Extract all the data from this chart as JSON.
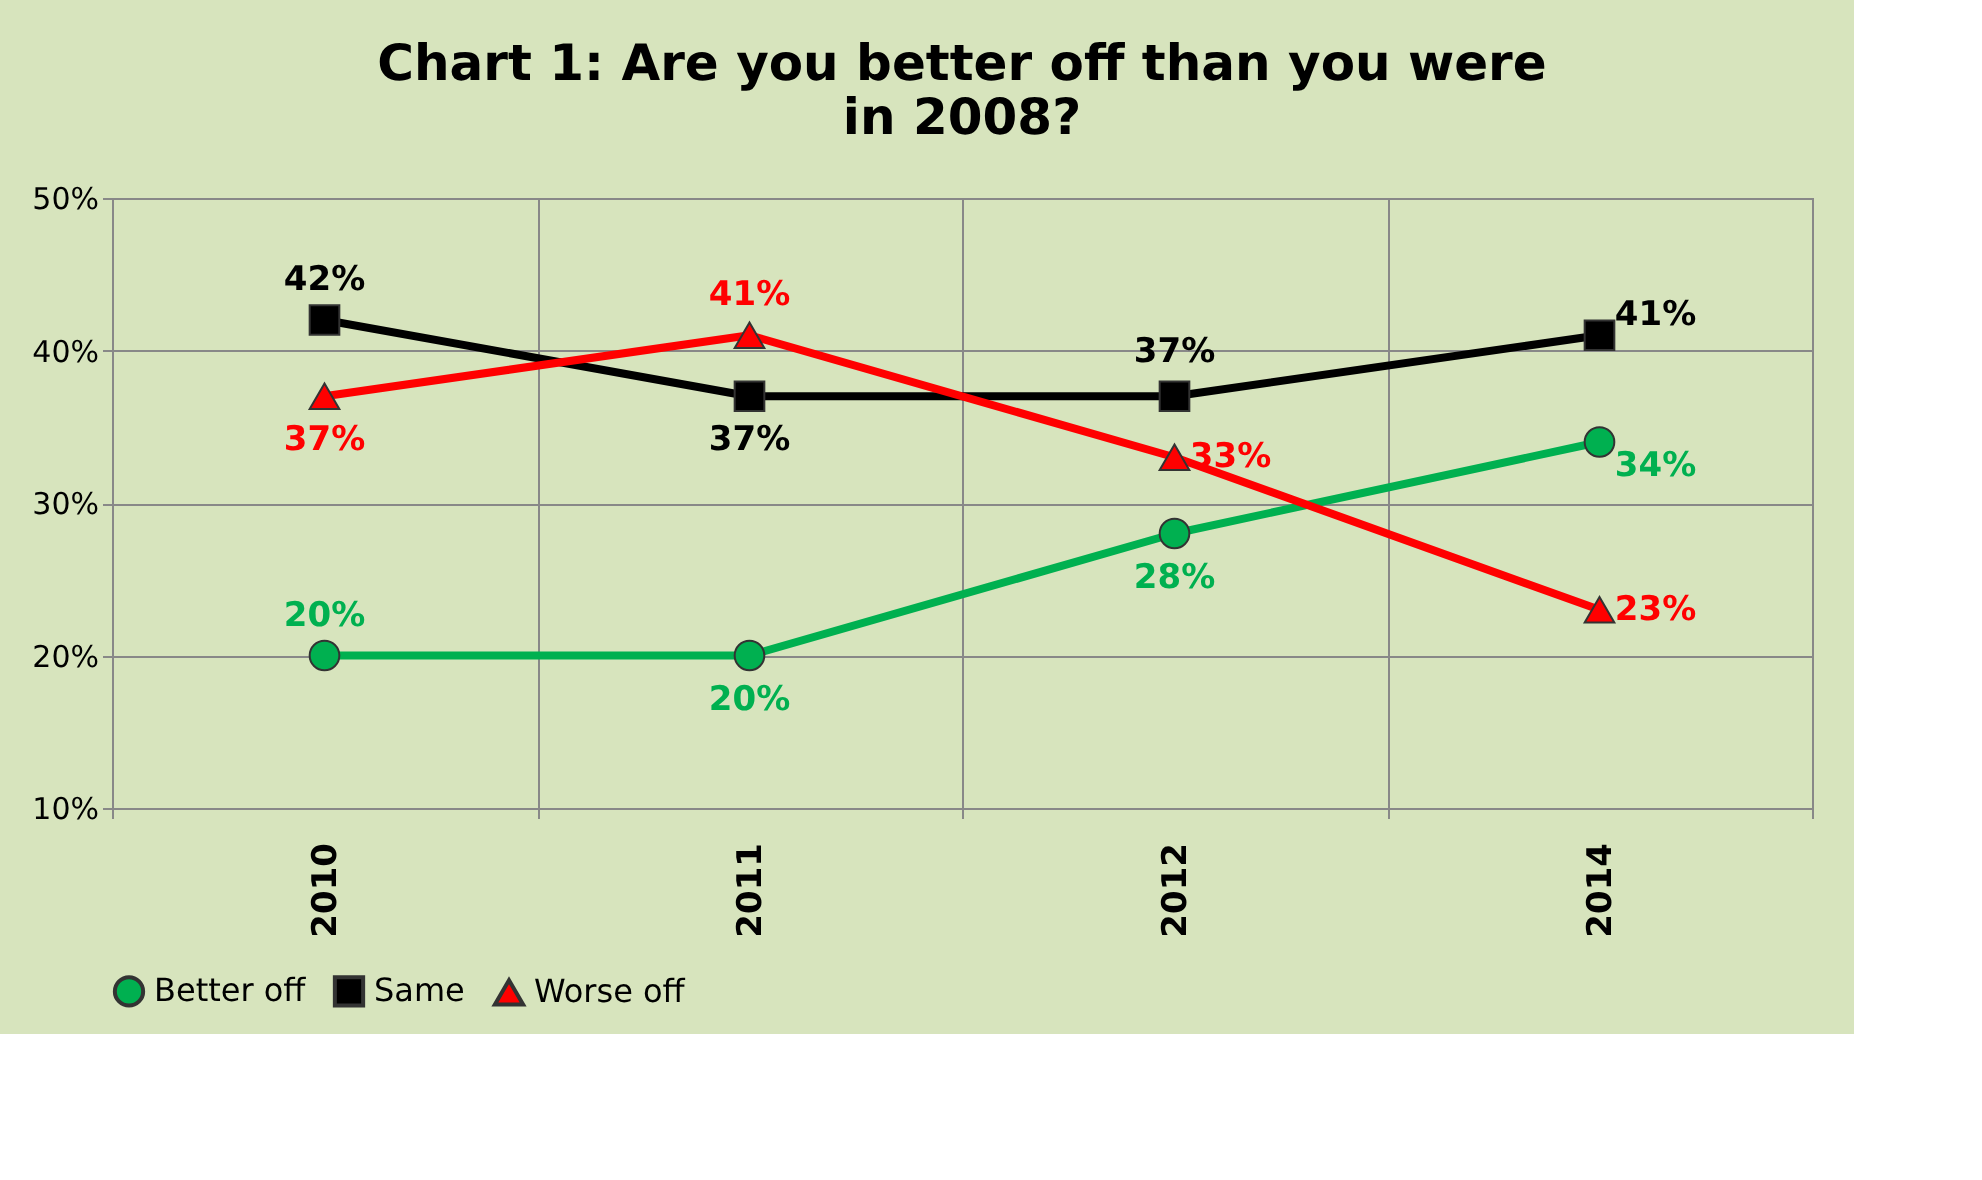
{
  "chart_data": {
    "type": "line",
    "title": "Chart 1: Are you better off than you were in 2008?",
    "categories": [
      "2010",
      "2011",
      "2012",
      "2014"
    ],
    "series": [
      {
        "name": "Better off",
        "color": "#00b050",
        "marker": "circle",
        "values": [
          20,
          20,
          28,
          34
        ],
        "value_labels": [
          "20%",
          "20%",
          "28%",
          "34%"
        ]
      },
      {
        "name": "Same",
        "color": "#000000",
        "marker": "square",
        "values": [
          42,
          37,
          37,
          41
        ],
        "value_labels": [
          "42%",
          "37%",
          "37%",
          "41%"
        ]
      },
      {
        "name": "Worse off",
        "color": "#ff0000",
        "marker": "triangle",
        "values": [
          37,
          41,
          33,
          23
        ],
        "value_labels": [
          "37%",
          "41%",
          "33%",
          "23%"
        ]
      }
    ],
    "ylim": [
      10,
      50
    ],
    "yticks": [
      {
        "value": 10,
        "label": "10%"
      },
      {
        "value": 20,
        "label": "20%"
      },
      {
        "value": 30,
        "label": "30%"
      },
      {
        "value": 40,
        "label": "40%"
      },
      {
        "value": 50,
        "label": "50%"
      }
    ],
    "grid": true,
    "legend": "bottom",
    "line_style": "solid"
  }
}
